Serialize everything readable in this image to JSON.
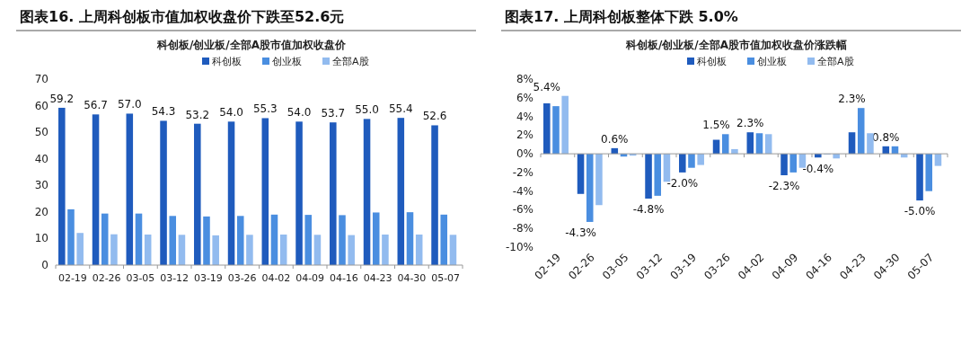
{
  "chart_data": [
    {
      "type": "bar",
      "title": "图表16. 上周科创板市值加权收盘价下跌至52.6元",
      "subtitle": "科创板/创业板/全部A股市值加权收盘价",
      "categories": [
        "02-19",
        "02-26",
        "03-05",
        "03-12",
        "03-19",
        "03-26",
        "04-02",
        "04-09",
        "04-16",
        "04-23",
        "04-30",
        "05-07"
      ],
      "ylim": [
        0,
        70
      ],
      "yticks": [
        0,
        10,
        20,
        30,
        40,
        50,
        60,
        70
      ],
      "legend": "top",
      "series": [
        {
          "name": "科创板",
          "color": "#1f5bbd",
          "values": [
            59.2,
            56.7,
            57.0,
            54.3,
            53.2,
            54.0,
            55.3,
            54.0,
            53.7,
            55.0,
            55.4,
            52.6
          ],
          "value_labels": [
            "59.2",
            "56.7",
            "57.0",
            "54.3",
            "53.2",
            "54.0",
            "55.3",
            "54.0",
            "53.7",
            "55.0",
            "55.4",
            "52.6"
          ]
        },
        {
          "name": "创业板",
          "color": "#4a8ee0",
          "values": [
            21.0,
            19.4,
            19.4,
            18.5,
            18.3,
            18.5,
            19.0,
            18.9,
            18.8,
            19.8,
            19.9,
            19.0
          ]
        },
        {
          "name": "全部A股",
          "color": "#92bbef",
          "values": [
            12.1,
            11.6,
            11.5,
            11.4,
            11.2,
            11.4,
            11.5,
            11.4,
            11.3,
            11.5,
            11.5,
            11.4
          ]
        }
      ]
    },
    {
      "type": "bar",
      "title": "图表17. 上周科创板整体下跌 5.0%",
      "subtitle": "科创板/创业板/全部A股市值加权收盘价涨跌幅",
      "categories": [
        "02-19",
        "02-26",
        "03-05",
        "03-12",
        "03-19",
        "03-26",
        "04-02",
        "04-09",
        "04-16",
        "04-23",
        "04-30",
        "05-07"
      ],
      "ylim": [
        -10,
        8
      ],
      "yticks": [
        {
          "value": -10,
          "label": "-10%"
        },
        {
          "value": -8,
          "label": "-8%"
        },
        {
          "value": -6,
          "label": "-6%"
        },
        {
          "value": -4,
          "label": "-4%"
        },
        {
          "value": -2,
          "label": "-2%"
        },
        {
          "value": 0,
          "label": "0%"
        },
        {
          "value": 2,
          "label": "2%"
        },
        {
          "value": 4,
          "label": "4%"
        },
        {
          "value": 6,
          "label": "6%"
        },
        {
          "value": 8,
          "label": "8%"
        }
      ],
      "legend": "top",
      "series": [
        {
          "name": "科创板",
          "color": "#1f5bbd",
          "values": [
            5.4,
            -4.3,
            0.6,
            -4.8,
            -2.0,
            1.5,
            2.3,
            -2.3,
            -0.4,
            2.3,
            0.8,
            -5.0
          ],
          "value_labels": [
            "5.4%",
            "-4.3%",
            "0.6%",
            "-4.8%",
            "-2.0%",
            "1.5%",
            "2.3%",
            "-2.3%",
            "-0.4%",
            "2.3%",
            "0.8%",
            "-5.0%"
          ]
        },
        {
          "name": "创业板",
          "color": "#4a8ee0",
          "values": [
            5.1,
            -7.3,
            -0.3,
            -4.5,
            -1.5,
            2.1,
            2.2,
            -2.0,
            0.0,
            4.9,
            0.8,
            -4.0
          ]
        },
        {
          "name": "全部A股",
          "color": "#92bbef",
          "values": [
            6.2,
            -5.5,
            -0.2,
            -3.0,
            -1.2,
            0.5,
            2.1,
            -1.5,
            -0.5,
            2.2,
            -0.4,
            -1.3
          ]
        }
      ]
    }
  ]
}
